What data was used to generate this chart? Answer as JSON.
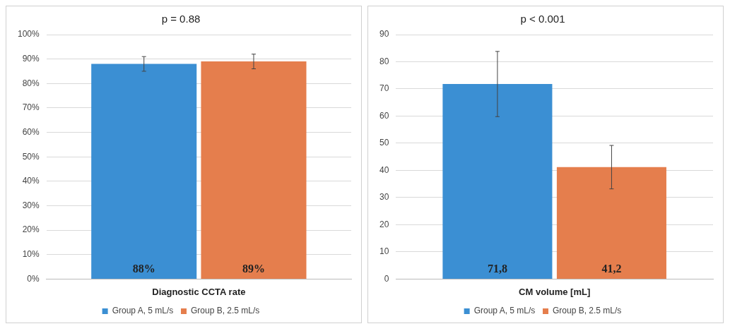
{
  "chart_data": [
    {
      "type": "bar",
      "title": "p = 0.88",
      "categories": [
        "Diagnostic CCTA rate"
      ],
      "series": [
        {
          "name": "Group A, 5 mL/s",
          "color": "#3b8fd3",
          "values": [
            88
          ],
          "errors": [
            3
          ],
          "value_labels": [
            "88%"
          ]
        },
        {
          "name": "Group B, 2.5 mL/s",
          "color": "#e57e4d",
          "values": [
            89
          ],
          "errors": [
            3
          ],
          "value_labels": [
            "89%"
          ]
        }
      ],
      "ylim": [
        0,
        100
      ],
      "yticks": [
        {
          "value": 0,
          "label": "0%"
        },
        {
          "value": 10,
          "label": "10%"
        },
        {
          "value": 20,
          "label": "20%"
        },
        {
          "value": 30,
          "label": "30%"
        },
        {
          "value": 40,
          "label": "40%"
        },
        {
          "value": 50,
          "label": "50%"
        },
        {
          "value": 60,
          "label": "60%"
        },
        {
          "value": 70,
          "label": "70%"
        },
        {
          "value": 80,
          "label": "80%"
        },
        {
          "value": 90,
          "label": "90%"
        },
        {
          "value": 100,
          "label": "100%"
        }
      ],
      "grid": "y",
      "legend": "bottom"
    },
    {
      "type": "bar",
      "title": "p < 0.001",
      "categories": [
        "CM volume [mL]"
      ],
      "series": [
        {
          "name": "Group A, 5 mL/s",
          "color": "#3b8fd3",
          "values": [
            71.8
          ],
          "errors": [
            12
          ],
          "value_labels": [
            "71,8"
          ]
        },
        {
          "name": "Group B, 2.5 mL/s",
          "color": "#e57e4d",
          "values": [
            41.2
          ],
          "errors": [
            8
          ],
          "value_labels": [
            "41,2"
          ]
        }
      ],
      "ylim": [
        0,
        90
      ],
      "yticks": [
        0,
        10,
        20,
        30,
        40,
        50,
        60,
        70,
        80,
        90
      ],
      "grid": "y",
      "legend": "bottom"
    }
  ]
}
